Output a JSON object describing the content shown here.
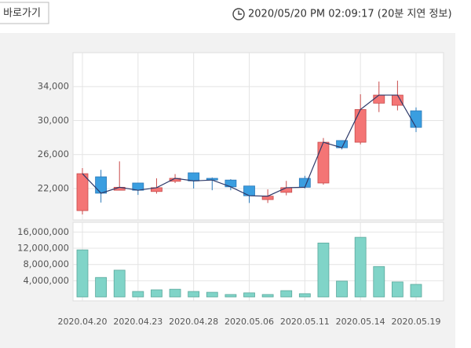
{
  "header": {
    "button": "바로가기",
    "timestamp": "2020/05/20 PM 02:09:17 (20분 지연 정보)"
  },
  "chart_data": [
    {
      "type": "candlestick",
      "categories": [
        "2020.04.20",
        null,
        null,
        "2020.04.23",
        null,
        null,
        "2020.04.28",
        null,
        null,
        "2020.05.06",
        null,
        null,
        "2020.05.11",
        null,
        null,
        "2020.05.14",
        null,
        null,
        "2020.05.19"
      ],
      "open": [
        19400,
        23380,
        21800,
        22650,
        21650,
        22850,
        23850,
        23200,
        23000,
        22300,
        20700,
        21550,
        23200,
        22650,
        27650,
        27450,
        32050,
        31800,
        31150
      ],
      "high": [
        24400,
        24200,
        25200,
        22650,
        23200,
        23700,
        23850,
        23300,
        23100,
        22300,
        21900,
        22900,
        23500,
        27950,
        27650,
        33100,
        34600,
        34700,
        31550
      ],
      "low": [
        18950,
        20350,
        21800,
        21250,
        21400,
        22650,
        22000,
        21800,
        21800,
        20300,
        20300,
        21200,
        22000,
        22450,
        26600,
        27200,
        31000,
        31200,
        28650
      ],
      "close": [
        23750,
        21450,
        22150,
        21800,
        22100,
        23200,
        22900,
        23000,
        22200,
        21150,
        21100,
        22100,
        22150,
        27450,
        26800,
        31300,
        33000,
        33000,
        29200
      ],
      "up_color": "#f47575",
      "down_color": "#3a9ee0",
      "line_color": "#2e3a6a",
      "ylim": [
        18300,
        38000
      ],
      "yticks": [
        {
          "value": 22000,
          "label": "22,000"
        },
        {
          "value": 26000,
          "label": "26,000"
        },
        {
          "value": 30000,
          "label": "30,000"
        },
        {
          "value": 34000,
          "label": "34,000"
        }
      ],
      "grid": true
    },
    {
      "type": "bar",
      "values": [
        11600000,
        4800000,
        6600000,
        1350000,
        1750000,
        1900000,
        1350000,
        1150000,
        600000,
        1000000,
        600000,
        1550000,
        800000,
        13300000,
        3900000,
        14700000,
        7500000,
        3700000,
        3100000
      ],
      "color": "#80d4c8",
      "ylim": [
        0,
        18400000
      ],
      "yticks": [
        {
          "value": 4000000,
          "label": "4,000,000"
        },
        {
          "value": 8000000,
          "label": "8,000,000"
        },
        {
          "value": 12000000,
          "label": "12,000,000"
        },
        {
          "value": 16000000,
          "label": "16,000,000"
        }
      ],
      "grid": true
    }
  ]
}
